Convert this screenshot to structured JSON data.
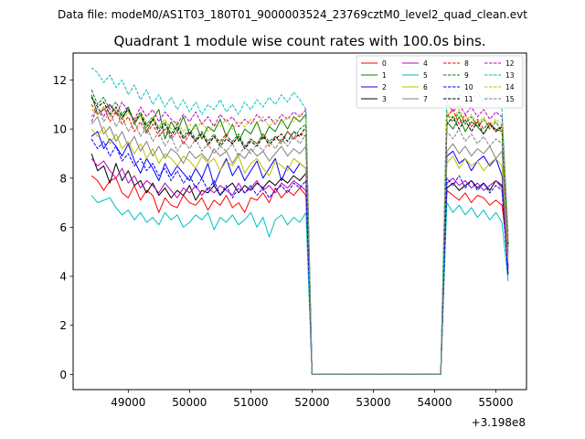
{
  "figure": {
    "suptitle": "Data file: modeM0/AS1T03_180T01_9000003524_23769cztM0_level2_quad_clean.evt"
  },
  "chart_data": {
    "type": "line",
    "title": "Quadrant 1 module wise count rates with 100.0s bins.",
    "xlabel": "",
    "ylabel": "",
    "x_offset_label": "+3.198e8",
    "xlim": [
      48100,
      55500
    ],
    "ylim": [
      -0.62,
      13.1
    ],
    "x_ticks": [
      49000,
      50000,
      51000,
      52000,
      53000,
      54000,
      55000
    ],
    "x_tick_labels": [
      "49000",
      "50000",
      "51000",
      "52000",
      "53000",
      "54000",
      "55000"
    ],
    "y_ticks": [
      0,
      2,
      4,
      6,
      8,
      10,
      12
    ],
    "y_tick_labels": [
      "0",
      "2",
      "4",
      "6",
      "8",
      "10",
      "12"
    ],
    "x": [
      48400,
      48500,
      48600,
      48700,
      48800,
      48900,
      49000,
      49100,
      49200,
      49300,
      49400,
      49500,
      49600,
      49700,
      49800,
      49900,
      50000,
      50100,
      50200,
      50300,
      50400,
      50500,
      50600,
      50700,
      50800,
      50900,
      51000,
      51100,
      51200,
      51300,
      51400,
      51500,
      51600,
      51700,
      51800,
      51900,
      52000,
      52100,
      54100,
      54200,
      54300,
      54400,
      54500,
      54600,
      54700,
      54800,
      54900,
      55000,
      55100,
      55200
    ],
    "legend_position": "upper right",
    "series": [
      {
        "name": "0",
        "color": "#ff0000",
        "dash": "solid",
        "values": [
          8.1,
          7.9,
          7.5,
          7.9,
          8.0,
          7.4,
          7.2,
          7.7,
          7.1,
          7.5,
          7.3,
          6.6,
          7.2,
          6.9,
          6.8,
          7.3,
          7.0,
          6.9,
          7.2,
          6.7,
          7.1,
          6.9,
          7.3,
          6.8,
          7.0,
          6.6,
          7.2,
          7.1,
          7.4,
          7.0,
          7.6,
          7.2,
          7.5,
          7.3,
          7.6,
          7.3,
          0.0,
          0.0,
          0.0,
          7.5,
          7.3,
          7.1,
          7.4,
          7.0,
          7.3,
          7.2,
          6.9,
          7.1,
          6.9,
          4.8
        ]
      },
      {
        "name": "1",
        "color": "#008000",
        "dash": "solid",
        "values": [
          11.4,
          10.6,
          10.8,
          11.0,
          10.7,
          10.4,
          10.9,
          10.2,
          10.6,
          9.9,
          10.4,
          10.8,
          9.6,
          10.3,
          9.9,
          10.5,
          9.8,
          10.2,
          9.6,
          10.1,
          9.9,
          10.4,
          9.7,
          10.2,
          9.5,
          10.0,
          9.8,
          10.3,
          9.6,
          10.1,
          9.9,
          10.4,
          10.0,
          10.5,
          10.3,
          10.6,
          0.0,
          0.0,
          0.0,
          10.3,
          10.0,
          10.5,
          9.9,
          10.3,
          10.1,
          9.8,
          10.2,
          10.0,
          9.9,
          5.2
        ]
      },
      {
        "name": "2",
        "color": "#0000ff",
        "dash": "solid",
        "values": [
          9.7,
          9.9,
          9.2,
          9.6,
          9.3,
          8.9,
          9.4,
          8.7,
          8.2,
          8.8,
          8.4,
          7.9,
          8.6,
          8.1,
          8.5,
          8.2,
          7.9,
          8.4,
          8.0,
          8.6,
          7.7,
          8.3,
          8.8,
          8.1,
          8.5,
          7.9,
          8.3,
          8.7,
          8.0,
          8.4,
          8.8,
          7.9,
          8.5,
          8.2,
          8.6,
          8.4,
          0.0,
          0.0,
          0.0,
          8.9,
          9.1,
          8.6,
          8.8,
          8.3,
          8.7,
          8.9,
          8.5,
          8.8,
          8.1,
          4.4
        ]
      },
      {
        "name": "3",
        "color": "#000000",
        "dash": "solid",
        "values": [
          9.0,
          8.3,
          8.5,
          7.8,
          8.6,
          7.9,
          8.3,
          7.7,
          7.9,
          7.4,
          7.8,
          7.3,
          7.6,
          7.2,
          7.5,
          7.3,
          7.7,
          7.1,
          7.5,
          7.4,
          7.7,
          7.3,
          7.6,
          7.8,
          7.4,
          7.7,
          7.5,
          7.8,
          7.6,
          7.9,
          7.7,
          8.0,
          7.8,
          8.1,
          7.9,
          8.2,
          0.0,
          0.0,
          0.0,
          7.6,
          7.8,
          7.5,
          7.7,
          7.9,
          7.6,
          7.8,
          7.5,
          7.9,
          7.7,
          4.1
        ]
      },
      {
        "name": "4",
        "color": "#bf00bf",
        "dash": "solid",
        "values": [
          8.8,
          8.5,
          8.7,
          8.3,
          8.0,
          8.4,
          7.8,
          8.1,
          7.6,
          7.9,
          7.7,
          7.4,
          7.8,
          7.5,
          7.2,
          7.6,
          7.4,
          7.7,
          7.3,
          7.6,
          7.4,
          7.7,
          7.5,
          7.3,
          7.8,
          7.4,
          7.6,
          7.9,
          7.5,
          7.7,
          7.4,
          7.8,
          7.6,
          7.9,
          7.7,
          7.5,
          0.0,
          0.0,
          0.0,
          7.8,
          8.0,
          7.7,
          7.9,
          7.6,
          7.8,
          7.5,
          7.7,
          7.9,
          7.6,
          4.3
        ]
      },
      {
        "name": "5",
        "color": "#00bfbf",
        "dash": "solid",
        "values": [
          7.3,
          7.0,
          7.1,
          7.2,
          6.8,
          6.5,
          6.7,
          6.3,
          6.6,
          6.2,
          6.4,
          6.1,
          6.6,
          6.3,
          6.5,
          6.0,
          6.2,
          6.5,
          6.3,
          6.6,
          5.9,
          6.4,
          6.2,
          6.5,
          6.1,
          6.3,
          6.6,
          6.0,
          6.4,
          5.6,
          6.3,
          6.5,
          6.1,
          6.4,
          6.2,
          6.6,
          0.0,
          0.0,
          0.0,
          7.0,
          6.6,
          6.9,
          6.5,
          6.8,
          6.4,
          6.7,
          6.3,
          6.6,
          6.2,
          3.8
        ]
      },
      {
        "name": "6",
        "color": "#bfbf00",
        "dash": "solid",
        "values": [
          10.0,
          9.7,
          10.1,
          9.4,
          9.8,
          9.2,
          9.5,
          9.0,
          9.4,
          8.8,
          9.2,
          8.6,
          9.0,
          8.8,
          8.5,
          8.9,
          8.7,
          8.4,
          8.9,
          8.6,
          8.8,
          8.3,
          8.7,
          8.5,
          8.9,
          8.2,
          8.6,
          8.8,
          8.4,
          8.1,
          8.7,
          8.5,
          8.3,
          8.8,
          8.6,
          8.4,
          0.0,
          0.0,
          0.0,
          8.6,
          8.9,
          8.4,
          8.8,
          8.5,
          8.7,
          8.3,
          8.6,
          8.8,
          8.5,
          4.6
        ]
      },
      {
        "name": "7",
        "color": "#808080",
        "dash": "solid",
        "values": [
          10.2,
          10.5,
          9.8,
          10.1,
          9.5,
          9.9,
          9.3,
          9.7,
          9.1,
          9.5,
          8.9,
          9.3,
          8.8,
          9.2,
          9.0,
          8.6,
          9.1,
          8.8,
          9.0,
          8.7,
          9.2,
          8.9,
          9.1,
          8.6,
          9.0,
          8.8,
          9.2,
          8.9,
          9.1,
          8.7,
          9.0,
          9.3,
          8.9,
          9.2,
          9.0,
          9.3,
          0.0,
          0.0,
          0.0,
          9.1,
          9.4,
          9.0,
          9.3,
          8.9,
          9.2,
          9.0,
          9.3,
          8.8,
          9.1,
          4.9
        ]
      },
      {
        "name": "8",
        "color": "#ff0000",
        "dash": "dashed",
        "values": [
          11.0,
          10.6,
          10.9,
          10.3,
          10.7,
          10.2,
          10.5,
          9.9,
          10.3,
          9.8,
          10.2,
          9.7,
          10.0,
          9.6,
          9.9,
          9.4,
          9.8,
          9.5,
          9.9,
          9.3,
          9.7,
          9.5,
          9.8,
          9.4,
          9.7,
          9.2,
          9.6,
          9.4,
          9.8,
          9.3,
          9.7,
          9.5,
          9.9,
          9.6,
          9.8,
          9.7,
          0.0,
          0.0,
          0.0,
          10.5,
          10.8,
          10.2,
          10.6,
          10.1,
          10.4,
          10.0,
          10.3,
          9.9,
          10.2,
          5.4
        ]
      },
      {
        "name": "9",
        "color": "#008000",
        "dash": "dashed",
        "values": [
          11.6,
          11.0,
          11.3,
          10.8,
          11.1,
          10.6,
          10.9,
          10.3,
          10.7,
          10.2,
          10.5,
          10.0,
          10.3,
          9.8,
          10.2,
          9.7,
          10.0,
          9.6,
          9.9,
          9.5,
          9.8,
          9.4,
          9.7,
          9.5,
          9.8,
          9.3,
          9.6,
          9.4,
          9.8,
          9.5,
          9.7,
          9.4,
          9.9,
          9.6,
          10.0,
          10.2,
          0.0,
          0.0,
          0.0,
          10.6,
          10.3,
          10.7,
          10.2,
          10.5,
          10.1,
          10.4,
          10.0,
          10.3,
          9.9,
          5.3
        ]
      },
      {
        "name": "10",
        "color": "#0000ff",
        "dash": "dashed",
        "values": [
          9.6,
          9.2,
          9.5,
          8.9,
          9.3,
          8.7,
          9.0,
          8.5,
          8.8,
          8.3,
          8.6,
          8.1,
          8.4,
          7.9,
          8.3,
          7.8,
          8.1,
          7.6,
          8.0,
          7.5,
          7.9,
          7.3,
          7.7,
          7.2,
          7.6,
          7.4,
          7.7,
          7.3,
          7.6,
          7.2,
          7.5,
          7.7,
          7.4,
          7.8,
          7.6,
          7.9,
          0.0,
          0.0,
          0.0,
          8.0,
          7.7,
          8.1,
          7.6,
          7.9,
          7.5,
          7.8,
          7.4,
          7.7,
          7.5,
          4.0
        ]
      },
      {
        "name": "11",
        "color": "#000000",
        "dash": "dashed",
        "values": [
          11.3,
          10.9,
          11.1,
          10.6,
          10.9,
          10.5,
          10.8,
          10.3,
          10.6,
          10.1,
          10.4,
          9.9,
          10.2,
          9.7,
          10.1,
          9.6,
          9.9,
          9.5,
          9.8,
          9.4,
          9.7,
          9.3,
          9.6,
          9.4,
          9.7,
          9.2,
          9.5,
          9.3,
          9.7,
          9.4,
          9.6,
          9.8,
          9.5,
          9.9,
          9.7,
          10.1,
          0.0,
          0.0,
          0.0,
          10.2,
          10.5,
          10.0,
          10.4,
          9.9,
          10.3,
          9.8,
          10.2,
          9.9,
          10.1,
          5.2
        ]
      },
      {
        "name": "12",
        "color": "#bf00bf",
        "dash": "dashed",
        "values": [
          10.3,
          10.9,
          10.5,
          11.0,
          10.6,
          11.1,
          10.7,
          10.4,
          10.9,
          10.5,
          10.8,
          10.3,
          10.7,
          10.4,
          10.2,
          10.6,
          10.3,
          10.7,
          10.2,
          10.5,
          10.1,
          10.6,
          10.3,
          10.5,
          10.1,
          10.4,
          10.2,
          10.6,
          10.3,
          10.5,
          10.2,
          10.6,
          10.4,
          10.7,
          10.5,
          10.8,
          0.0,
          0.0,
          0.0,
          11.1,
          10.7,
          11.0,
          10.6,
          10.9,
          10.5,
          10.8,
          10.4,
          10.7,
          10.5,
          5.6
        ]
      },
      {
        "name": "13",
        "color": "#00bfbf",
        "dash": "dashed",
        "values": [
          12.5,
          12.3,
          11.9,
          12.2,
          11.7,
          12.0,
          11.4,
          11.8,
          11.2,
          11.6,
          11.0,
          11.4,
          10.9,
          11.3,
          10.8,
          11.2,
          10.7,
          11.1,
          10.6,
          11.0,
          10.8,
          11.2,
          10.7,
          11.0,
          10.6,
          11.1,
          10.8,
          11.2,
          10.9,
          11.3,
          11.0,
          11.4,
          11.1,
          11.5,
          11.2,
          10.8,
          0.0,
          0.0,
          0.0,
          11.6,
          11.8,
          11.3,
          11.7,
          11.2,
          11.5,
          11.1,
          11.4,
          11.0,
          10.8,
          5.8
        ]
      },
      {
        "name": "14",
        "color": "#bfbf00",
        "dash": "dashed",
        "values": [
          10.8,
          10.6,
          10.9,
          10.5,
          10.8,
          10.4,
          10.7,
          10.3,
          10.6,
          10.2,
          10.5,
          10.1,
          10.4,
          10.0,
          10.3,
          9.9,
          10.2,
          10.0,
          10.3,
          9.9,
          10.2,
          10.1,
          10.4,
          10.0,
          10.3,
          10.1,
          10.4,
          10.2,
          10.5,
          10.1,
          10.4,
          10.2,
          10.5,
          10.3,
          10.6,
          10.4,
          0.0,
          0.0,
          0.0,
          10.7,
          10.4,
          10.8,
          10.3,
          10.6,
          10.2,
          10.5,
          10.1,
          10.4,
          10.2,
          5.5
        ]
      },
      {
        "name": "15",
        "color": "#808080",
        "dash": "dashed",
        "values": [
          10.5,
          10.9,
          10.3,
          10.7,
          10.1,
          10.5,
          9.9,
          10.3,
          9.7,
          10.1,
          9.5,
          9.9,
          9.3,
          9.7,
          9.1,
          9.5,
          9.2,
          9.6,
          9.1,
          9.4,
          9.0,
          9.3,
          9.1,
          9.4,
          8.9,
          9.3,
          9.0,
          9.4,
          9.1,
          9.5,
          9.2,
          9.6,
          9.3,
          9.7,
          9.4,
          9.8,
          0.0,
          0.0,
          0.0,
          9.9,
          9.6,
          10.0,
          9.5,
          9.8,
          9.4,
          9.7,
          9.3,
          9.6,
          9.4,
          5.0
        ]
      }
    ]
  }
}
